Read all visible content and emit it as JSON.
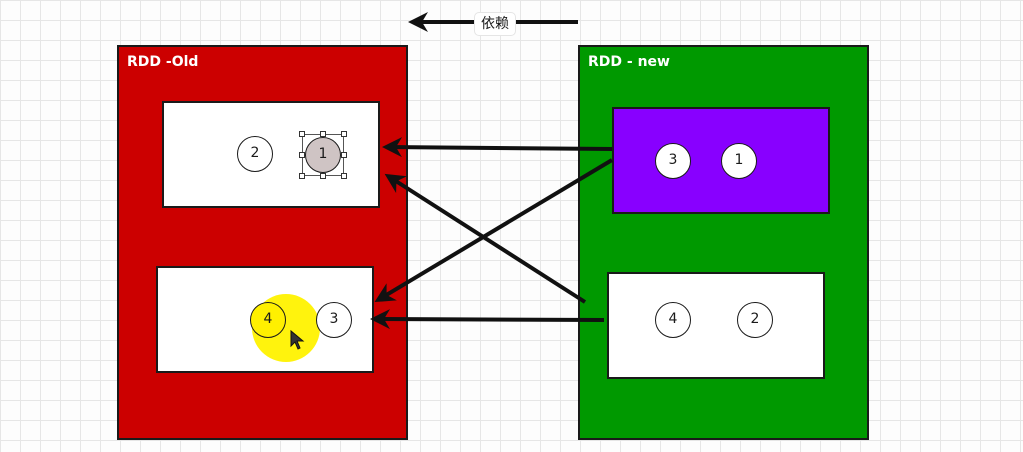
{
  "header": {
    "dependency_label": "依赖"
  },
  "rdd_old": {
    "title": "RDD -Old",
    "partitions": [
      {
        "badges": [
          "2",
          "1"
        ]
      },
      {
        "badges": [
          "4",
          "3"
        ]
      }
    ]
  },
  "rdd_new": {
    "title": "RDD - new",
    "partitions": [
      {
        "badges": [
          "3",
          "1"
        ]
      },
      {
        "badges": [
          "4",
          "2"
        ]
      }
    ]
  },
  "colors": {
    "rdd_old_fill": "#cc0000",
    "rdd_new_fill": "#009900",
    "new_partition_1_fill": "#8800ff",
    "selected_badge_fill": "#cfc4c4",
    "highlight": "#fff000",
    "arrow": "#111111"
  },
  "icons": {
    "dependency_arrow": "arrow-left-icon",
    "cursor": "mouse-pointer-icon"
  }
}
